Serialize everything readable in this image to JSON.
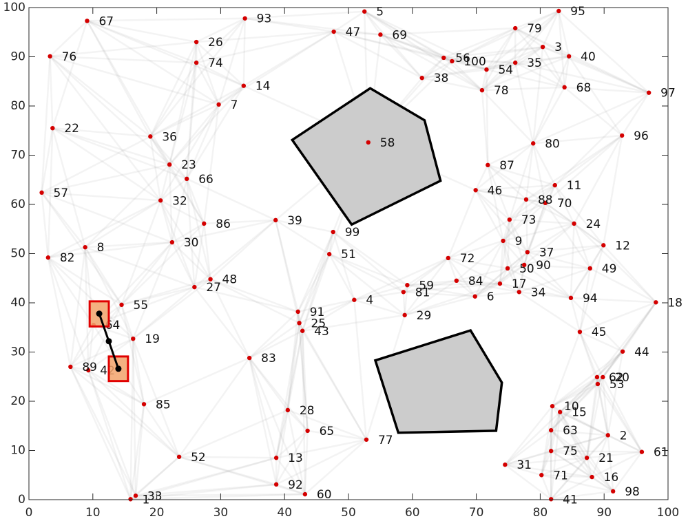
{
  "chart_data": {
    "type": "scatter",
    "x": [
      15.9,
      90.6,
      80.4,
      50.9,
      52.5,
      69.8,
      29.7,
      8.8,
      74.2,
      81.9,
      82.3,
      89.9,
      38.7,
      33.6,
      83.1,
      88.1,
      73.7,
      98.1,
      16.3,
      89.8,
      87.3,
      3.7,
      22.0,
      85.3,
      42.3,
      26.2,
      25.9,
      40.5,
      58.8,
      22.4,
      74.5,
      20.6,
      16.7,
      76.7,
      76.1,
      19.0,
      78.0,
      61.5,
      38.6,
      84.5,
      81.7,
      9.3,
      42.8,
      92.9,
      86.2,
      69.9,
      47.7,
      28.4,
      87.8,
      74.9,
      47.0,
      23.5,
      89.0,
      71.6,
      14.5,
      64.9,
      2.0,
      53.1,
      59.2,
      43.2,
      95.9,
      88.9,
      81.7,
      10.1,
      43.6,
      24.7,
      9.1,
      83.8,
      55.0,
      80.8,
      80.2,
      65.6,
      75.2,
      26.2,
      81.7,
      3.3,
      52.8,
      70.9,
      76.1,
      78.9,
      58.6,
      3.0,
      34.5,
      66.9,
      18.0,
      27.4,
      71.8,
      77.8,
      6.5,
      77.5,
      42.1,
      38.7,
      33.8,
      84.8,
      82.9,
      92.8,
      97.0,
      91.4,
      47.6,
      66.2
    ],
    "y": [
      0.1,
      13.1,
      92.0,
      40.6,
      99.2,
      41.3,
      80.3,
      51.3,
      52.6,
      19.0,
      63.9,
      51.7,
      8.5,
      84.1,
      17.8,
      4.6,
      43.9,
      40.1,
      32.7,
      24.9,
      8.5,
      75.5,
      68.1,
      56.1,
      35.9,
      93.0,
      43.2,
      18.2,
      37.5,
      52.3,
      7.1,
      60.8,
      0.8,
      42.2,
      88.8,
      73.8,
      50.3,
      85.7,
      56.8,
      90.1,
      0.1,
      26.3,
      34.3,
      30.1,
      34.1,
      62.9,
      95.1,
      44.8,
      47.0,
      47.0,
      49.9,
      8.7,
      23.5,
      87.4,
      39.6,
      89.8,
      62.4,
      72.6,
      43.6,
      1.1,
      9.7,
      24.9,
      14.1,
      35.5,
      14.0,
      65.2,
      97.3,
      83.8,
      94.5,
      60.3,
      5.0,
      49.1,
      56.9,
      88.8,
      9.9,
      90.1,
      12.2,
      83.2,
      95.8,
      72.4,
      42.2,
      49.2,
      28.8,
      44.5,
      19.4,
      56.1,
      68.0,
      61.0,
      27.0,
      47.7,
      38.2,
      3.1,
      97.8,
      41.0,
      99.3,
      74.0,
      82.7,
      1.7,
      54.4,
      89.1
    ],
    "labels": [
      "1",
      "2",
      "3",
      "4",
      "5",
      "6",
      "7",
      "8",
      "9",
      "10",
      "11",
      "12",
      "13",
      "14",
      "15",
      "16",
      "17",
      "18",
      "19",
      "20",
      "21",
      "22",
      "23",
      "24",
      "25",
      "26",
      "27",
      "28",
      "29",
      "30",
      "31",
      "32",
      "33",
      "34",
      "35",
      "36",
      "37",
      "38",
      "39",
      "40",
      "41",
      "42",
      "43",
      "44",
      "45",
      "46",
      "47",
      "48",
      "49",
      "50",
      "51",
      "52",
      "53",
      "54",
      "55",
      "56",
      "57",
      "58",
      "59",
      "60",
      "61",
      "62",
      "63",
      "64",
      "65",
      "66",
      "67",
      "68",
      "69",
      "70",
      "71",
      "72",
      "73",
      "74",
      "75",
      "76",
      "77",
      "78",
      "79",
      "80",
      "81",
      "82",
      "83",
      "84",
      "85",
      "86",
      "87",
      "88",
      "89",
      "90",
      "91",
      "92",
      "93",
      "94",
      "95",
      "96",
      "97",
      "98",
      "99",
      "100"
    ],
    "color": "#d40000",
    "obstacles": [
      {
        "x": [
          41.2,
          53.4,
          61.9,
          64.4,
          50.5
        ],
        "y": [
          73.1,
          83.6,
          77.1,
          64.8,
          55.9
        ],
        "color": "#cccccc"
      },
      {
        "x": [
          54.2,
          69.1,
          74.0,
          73.1,
          57.8
        ],
        "y": [
          28.3,
          34.4,
          23.8,
          14.0,
          13.6
        ],
        "color": "#cccccc"
      }
    ],
    "path": {
      "x": [
        11.0,
        12.5,
        14.0
      ],
      "y": [
        37.8,
        32.2,
        26.6
      ],
      "color": "#000000"
    },
    "boxes": [
      {
        "x": [
          9.5,
          12.5
        ],
        "y": [
          35.2,
          40.3
        ],
        "color": "#f2a36b"
      },
      {
        "x": [
          12.5,
          15.5
        ],
        "y": [
          24.1,
          29.1
        ],
        "color": "#f2a36b"
      }
    ],
    "xlim": [
      0,
      100
    ],
    "ylim": [
      0,
      100
    ],
    "xticks": [
      0,
      10,
      20,
      30,
      40,
      50,
      60,
      70,
      80,
      90,
      100
    ],
    "yticks": [
      0,
      10,
      20,
      30,
      40,
      50,
      60,
      70,
      80,
      90,
      100
    ]
  }
}
